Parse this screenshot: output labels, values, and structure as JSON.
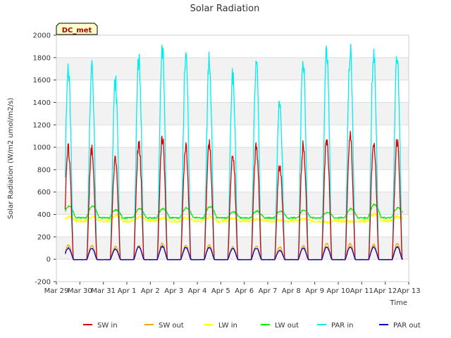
{
  "chart_data": {
    "type": "line",
    "title": "Solar Radiation",
    "xlabel": "Time",
    "ylabel": "Solar Radiation (W/m2 umol/m2/s)",
    "ylim": [
      -200,
      2000
    ],
    "yticks": [
      -200,
      0,
      200,
      400,
      600,
      800,
      1000,
      1200,
      1400,
      1600,
      1800,
      2000
    ],
    "xlim_days": [
      0,
      15
    ],
    "xticks": [
      "Mar 29",
      "Mar 30",
      "Mar 31",
      "Apr 1",
      "Apr 2",
      "Apr 3",
      "Apr 4",
      "Apr 5",
      "Apr 6",
      "Apr 7",
      "Apr 8",
      "Apr 9",
      "Apr 10",
      "Apr 11",
      "Apr 12",
      "Apr 13"
    ],
    "data_start": "Mar 29 09:00",
    "data_end": "Apr 12 18:00",
    "grid": "horizontal bands",
    "legend_position": "bottom",
    "badge": "DC_met",
    "daily_peaks": {
      "days": [
        "Mar 30",
        "Mar 31",
        "Apr 1",
        "Apr 2",
        "Apr 3",
        "Apr 4",
        "Apr 5",
        "Apr 6",
        "Apr 7",
        "Apr 8",
        "Apr 9",
        "Apr 10",
        "Apr 11",
        "Apr 12"
      ],
      "series": [
        {
          "name": "SW in",
          "color": "#dd0000",
          "values": [
            980,
            900,
            1030,
            1090,
            1020,
            1020,
            930,
            1000,
            830,
            1020,
            1080,
            1090,
            1050,
            1070
          ]
        },
        {
          "name": "SW out",
          "color": "#ffa500",
          "values": [
            125,
            115,
            120,
            140,
            125,
            125,
            110,
            120,
            110,
            120,
            140,
            140,
            130,
            140
          ]
        },
        {
          "name": "LW in",
          "color": "#ffff00",
          "values": [
            380,
            390,
            380,
            370,
            370,
            380,
            370,
            360,
            350,
            360,
            330,
            340,
            400,
            380
          ]
        },
        {
          "name": "LW out",
          "color": "#00ee00",
          "values": [
            475,
            440,
            450,
            450,
            460,
            470,
            420,
            430,
            430,
            440,
            420,
            450,
            490,
            460
          ]
        },
        {
          "name": "PAR in",
          "color": "#00eeee",
          "values": [
            1700,
            1590,
            1780,
            1890,
            1790,
            1770,
            1650,
            1740,
            1410,
            1770,
            1850,
            1860,
            1850,
            1840
          ]
        },
        {
          "name": "PAR out",
          "color": "#0000cc",
          "values": [
            100,
            90,
            110,
            115,
            105,
            105,
            95,
            100,
            80,
            100,
            110,
            110,
            110,
            110
          ]
        }
      ]
    },
    "night_values": {
      "SW in": 0,
      "SW out": 0,
      "LW in": 340,
      "LW out": 370,
      "PAR in": 0,
      "PAR out": 0
    }
  }
}
